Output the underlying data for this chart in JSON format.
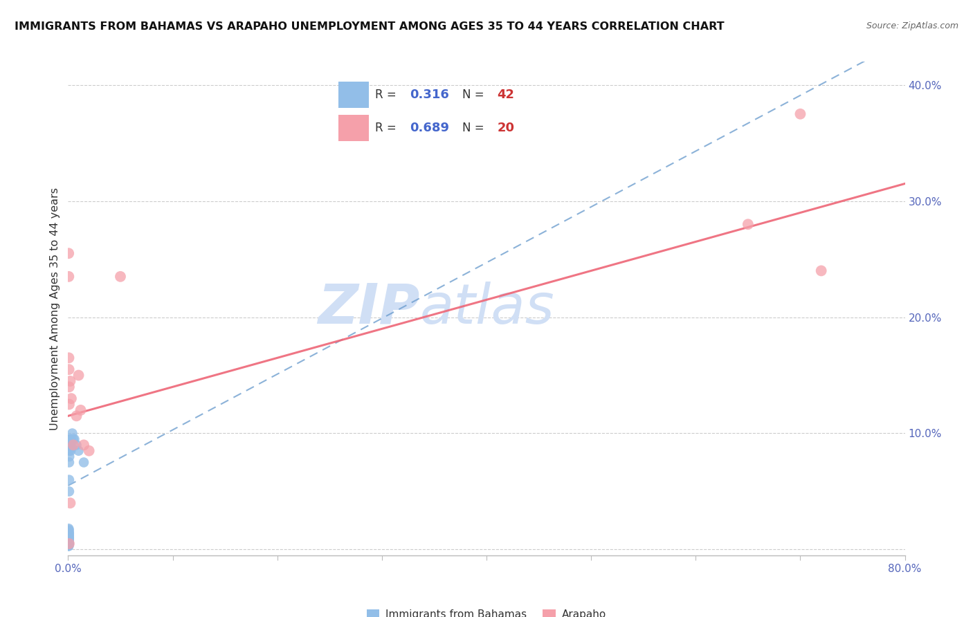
{
  "title": "IMMIGRANTS FROM BAHAMAS VS ARAPAHO UNEMPLOYMENT AMONG AGES 35 TO 44 YEARS CORRELATION CHART",
  "source": "Source: ZipAtlas.com",
  "ylabel": "Unemployment Among Ages 35 to 44 years",
  "watermark": "ZIPatlas",
  "xlim": [
    0.0,
    0.8
  ],
  "ylim": [
    -0.005,
    0.42
  ],
  "yticks": [
    0.0,
    0.1,
    0.2,
    0.3,
    0.4
  ],
  "xticks": [
    0.0,
    0.1,
    0.2,
    0.3,
    0.4,
    0.5,
    0.6,
    0.7,
    0.8
  ],
  "xtick_labels": [
    "0.0%",
    "",
    "",
    "",
    "",
    "",
    "",
    "",
    "80.0%"
  ],
  "ytick_labels": [
    "",
    "10.0%",
    "20.0%",
    "30.0%",
    "40.0%"
  ],
  "blue_R": 0.316,
  "blue_N": 42,
  "pink_R": 0.689,
  "pink_N": 20,
  "blue_color": "#92BEE8",
  "pink_color": "#F5A0AA",
  "blue_line_color": "#6699CC",
  "pink_line_color": "#EE6677",
  "blue_line_style": "--",
  "pink_line_style": "-",
  "blue_line_intercept": 0.055,
  "blue_line_slope_per_unit": 0.48,
  "pink_line_intercept": 0.115,
  "pink_line_slope_per_unit": 0.25,
  "legend_label_blue": "Immigrants from Bahamas",
  "legend_label_pink": "Arapaho",
  "R_label_color": "#4466CC",
  "N_label_color": "#CC3333",
  "background_color": "#FFFFFF",
  "grid_color": "#CCCCCC",
  "axis_color": "#BBBBBB",
  "tick_label_color": "#5566BB",
  "title_color": "#111111",
  "source_color": "#666666",
  "ylabel_color": "#333333",
  "watermark_color": "#D0DFF5",
  "blue_points_x": [
    0.0003,
    0.0004,
    0.0004,
    0.0005,
    0.0005,
    0.0005,
    0.0005,
    0.0005,
    0.0005,
    0.0006,
    0.0006,
    0.0006,
    0.0006,
    0.0006,
    0.0007,
    0.0007,
    0.0007,
    0.0007,
    0.0008,
    0.0008,
    0.0008,
    0.0008,
    0.0009,
    0.0009,
    0.0009,
    0.001,
    0.001,
    0.001,
    0.0012,
    0.0013,
    0.0015,
    0.002,
    0.0022,
    0.0025,
    0.003,
    0.0035,
    0.004,
    0.005,
    0.006,
    0.008,
    0.01,
    0.015
  ],
  "blue_points_y": [
    0.003,
    0.005,
    0.008,
    0.004,
    0.006,
    0.009,
    0.012,
    0.015,
    0.018,
    0.003,
    0.007,
    0.01,
    0.013,
    0.016,
    0.004,
    0.008,
    0.011,
    0.014,
    0.005,
    0.009,
    0.012,
    0.017,
    0.006,
    0.01,
    0.014,
    0.05,
    0.06,
    0.075,
    0.08,
    0.085,
    0.09,
    0.095,
    0.09,
    0.085,
    0.095,
    0.088,
    0.1,
    0.095,
    0.095,
    0.09,
    0.085,
    0.075
  ],
  "pink_points_x": [
    0.0005,
    0.0006,
    0.0007,
    0.0008,
    0.001,
    0.001,
    0.002,
    0.003,
    0.005,
    0.008,
    0.01,
    0.012,
    0.015,
    0.02,
    0.05,
    0.65,
    0.7,
    0.72,
    0.001,
    0.002
  ],
  "pink_points_y": [
    0.255,
    0.235,
    0.165,
    0.155,
    0.14,
    0.125,
    0.145,
    0.13,
    0.09,
    0.115,
    0.15,
    0.12,
    0.09,
    0.085,
    0.235,
    0.28,
    0.375,
    0.24,
    0.005,
    0.04
  ]
}
